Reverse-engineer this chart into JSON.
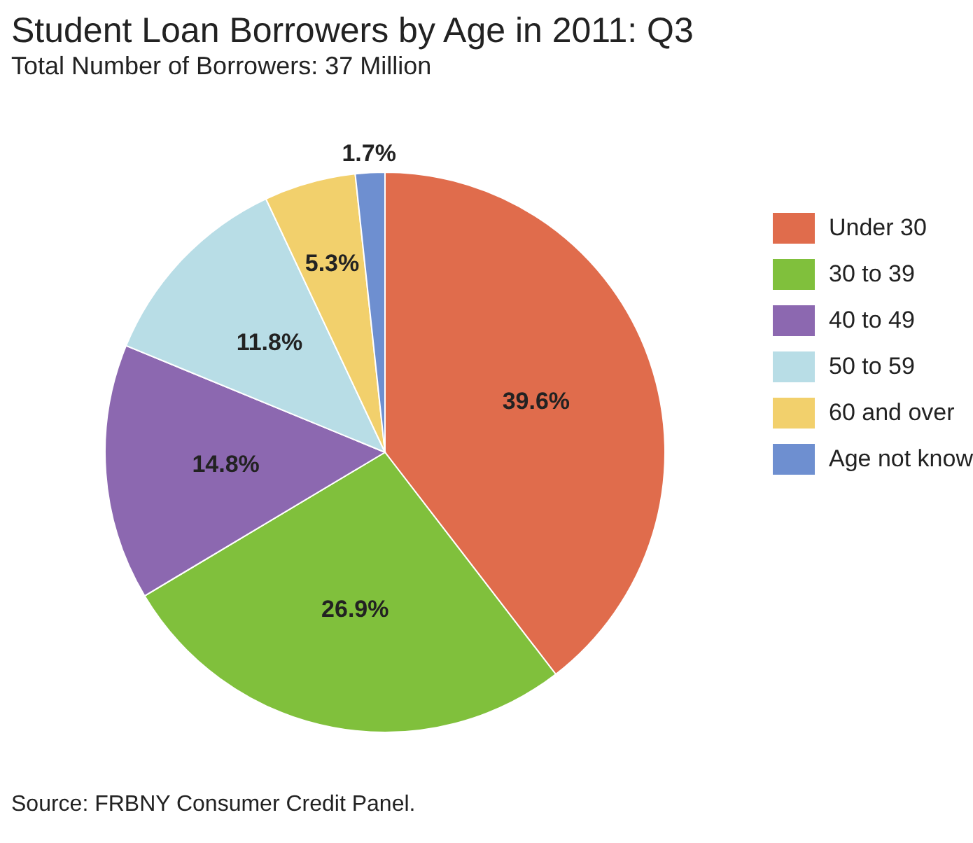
{
  "chart_data": {
    "type": "pie",
    "title": "Student Loan Borrowers by Age in 2011: Q3",
    "subtitle": "Total Number of Borrowers: 37 Million",
    "categories": [
      "Under 30",
      "30 to 39",
      "40 to 49",
      "50 to 59",
      "60 and over",
      "Age not know"
    ],
    "values": [
      39.6,
      26.9,
      14.8,
      11.8,
      5.3,
      1.7
    ],
    "colors": [
      "#e06c4c",
      "#80c03c",
      "#8c68b0",
      "#b8dde6",
      "#f2d06c",
      "#6e8fd0"
    ],
    "value_labels": [
      "39.6%",
      "26.9%",
      "14.8%",
      "11.8%",
      "5.3%",
      "1.7%"
    ],
    "legend": "right",
    "annotations": [
      "Source: FRBNY Consumer Credit Panel."
    ]
  }
}
